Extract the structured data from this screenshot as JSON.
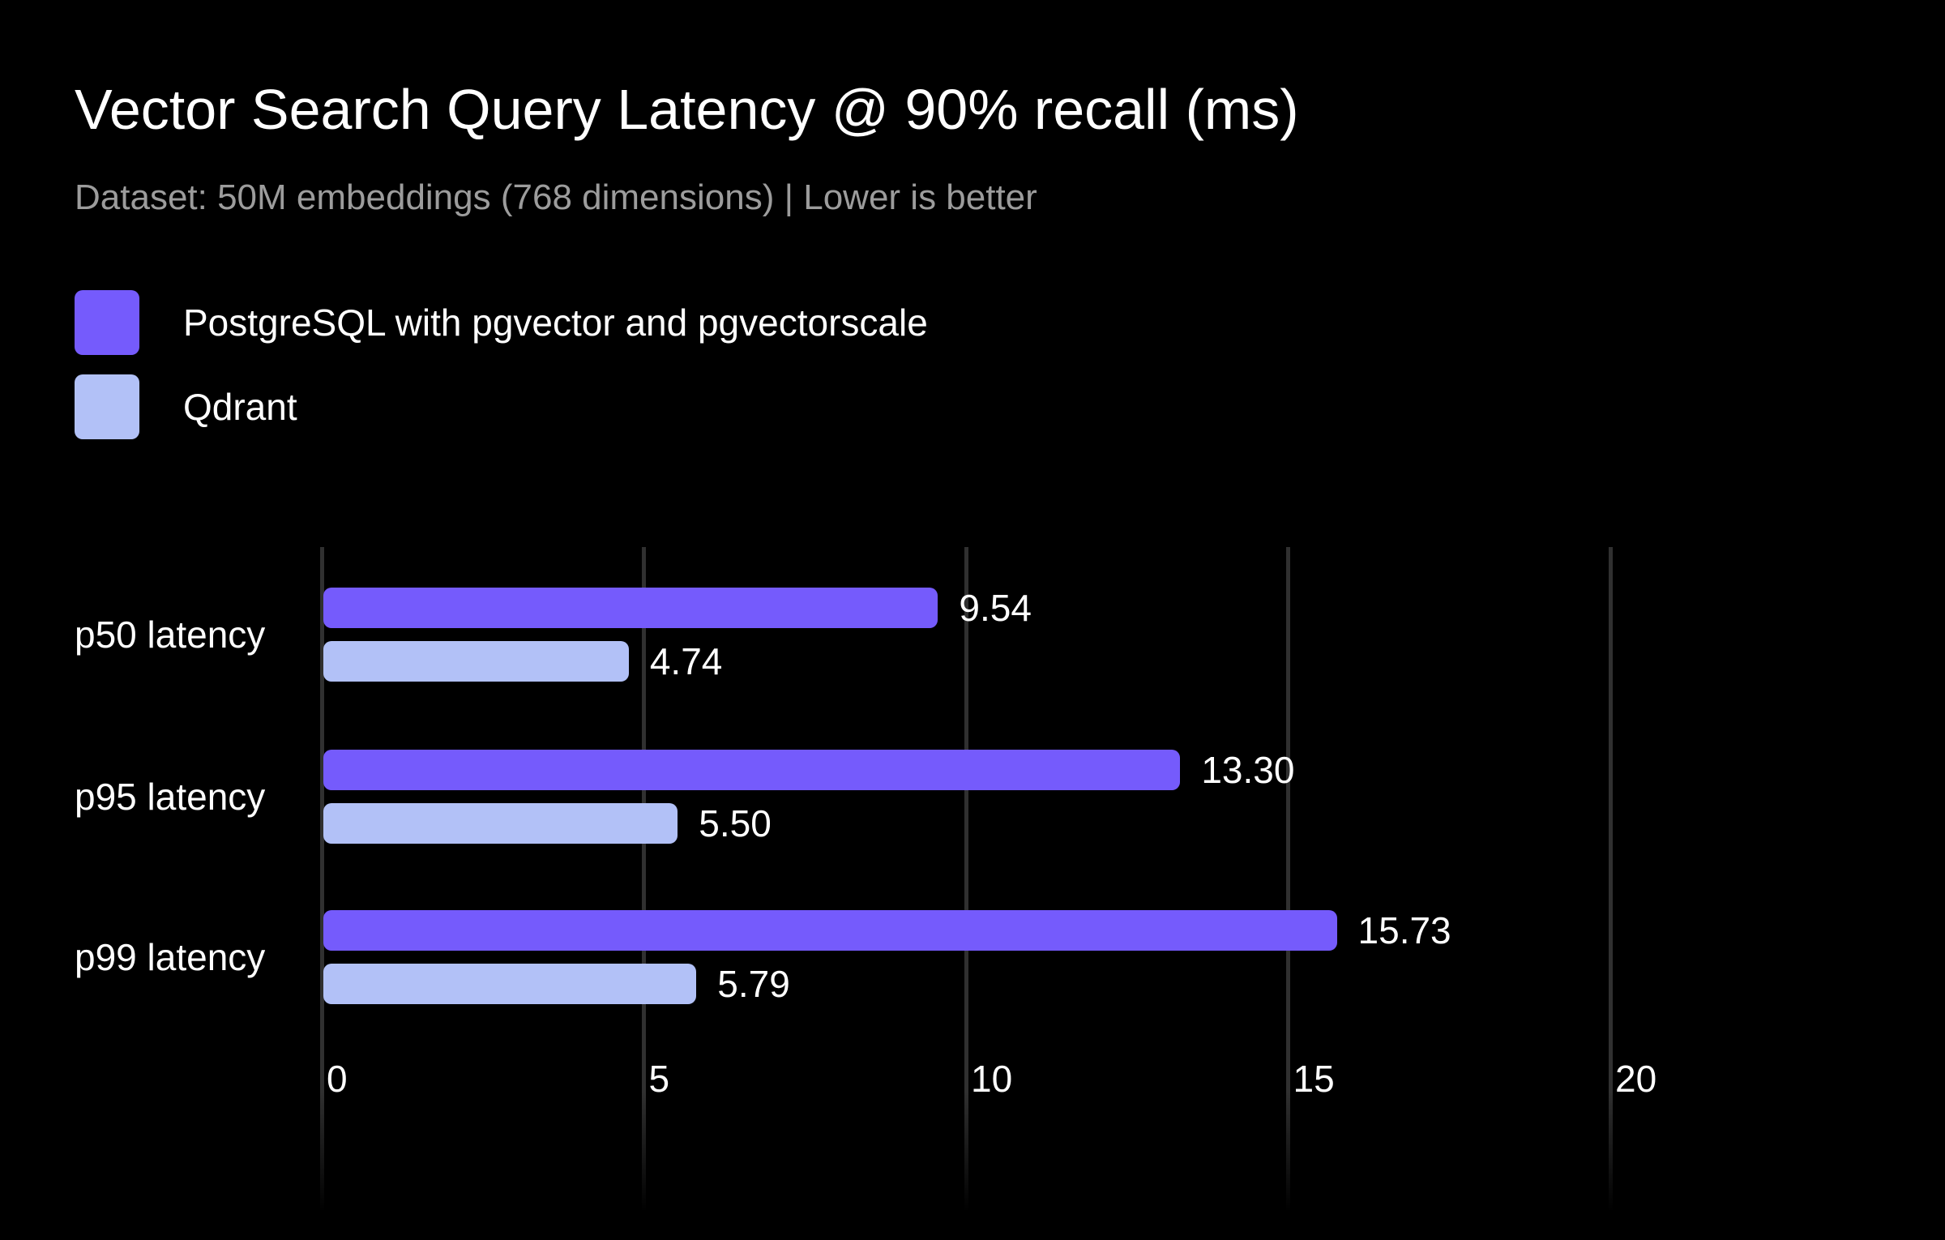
{
  "title": "Vector Search Query Latency @ 90% recall (ms)",
  "subtitle": "Dataset: 50M embeddings (768 dimensions) | Lower is better",
  "colors": {
    "background": "#000000",
    "primary": "#755BFC",
    "secondary": "#B2C1F7",
    "title_text": "#FFFFFF",
    "subtitle_text": "#9C9C9C",
    "gridline": "#303030",
    "label_text": "#FFFFFF"
  },
  "legend": {
    "items": [
      {
        "label": "PostgreSQL with pgvector and pgvectorscale",
        "color": "#755BFC"
      },
      {
        "label": "Qdrant",
        "color": "#B2C1F7"
      }
    ]
  },
  "chart_data": {
    "type": "bar",
    "orientation": "horizontal",
    "title": "Vector Search Query Latency @ 90% recall (ms)",
    "subtitle": "Dataset: 50M embeddings (768 dimensions) | Lower is better",
    "note": "Lower is better",
    "categories": [
      "p50 latency",
      "p95 latency",
      "p99 latency"
    ],
    "series": [
      {
        "name": "PostgreSQL with pgvector and pgvectorscale",
        "values": [
          9.54,
          13.3,
          15.73
        ]
      },
      {
        "name": "Qdrant",
        "values": [
          4.74,
          5.5,
          5.79
        ]
      }
    ],
    "value_labels": [
      [
        "9.54",
        "13.30",
        "15.73"
      ],
      [
        "4.74",
        "5.50",
        "5.79"
      ]
    ],
    "xlabel": "",
    "ylabel": "",
    "x_ticks": [
      0,
      5,
      10,
      15,
      20
    ],
    "xlim": [
      0,
      25.2
    ],
    "grid": true,
    "legend_position": "top-left"
  }
}
